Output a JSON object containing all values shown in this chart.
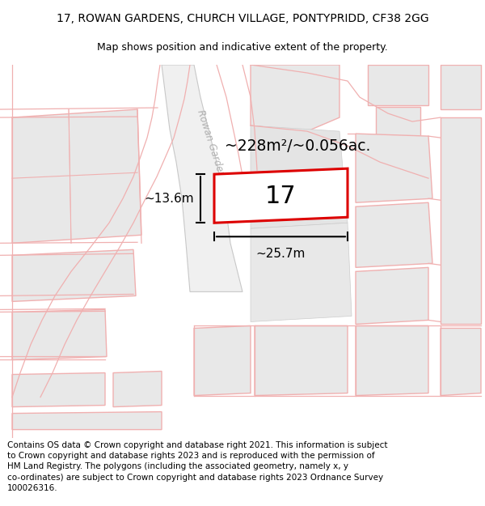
{
  "title_line1": "17, ROWAN GARDENS, CHURCH VILLAGE, PONTYPRIDD, CF38 2GG",
  "title_line2": "Map shows position and indicative extent of the property.",
  "footer_text": "Contains OS data © Crown copyright and database right 2021. This information is subject to Crown copyright and database rights 2023 and is reproduced with the permission of HM Land Registry. The polygons (including the associated geometry, namely x, y co-ordinates) are subject to Crown copyright and database rights 2023 Ordnance Survey 100026316.",
  "area_label": "~228m²/~0.056ac.",
  "width_label": "~25.7m",
  "height_label": "~13.6m",
  "plot_number": "17",
  "bg_color": "#ffffff",
  "map_bg": "#ffffff",
  "building_color": "#e8e8e8",
  "outline_color": "#f0b0b0",
  "plot_outline_color": "#dd0000",
  "road_label_color": "#b0b0b0",
  "title_fontsize": 10,
  "subtitle_fontsize": 9,
  "footer_fontsize": 7.5,
  "separator_color": "#cccccc"
}
